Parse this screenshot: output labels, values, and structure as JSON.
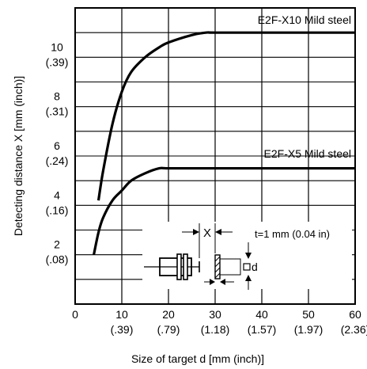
{
  "chart_data": {
    "type": "line",
    "xlabel": "Size of target d [mm (inch)]",
    "ylabel": "Detecting distance X [mm (inch)]",
    "xlim": [
      0,
      60
    ],
    "ylim": [
      0,
      12
    ],
    "grid": true,
    "x_ticks": [
      {
        "value": 0,
        "label": "0",
        "sub": ""
      },
      {
        "value": 10,
        "label": "10",
        "sub": "(.39)"
      },
      {
        "value": 20,
        "label": "20",
        "sub": "(.79)"
      },
      {
        "value": 30,
        "label": "30",
        "sub": "(1.18)"
      },
      {
        "value": 40,
        "label": "40",
        "sub": "(1.57)"
      },
      {
        "value": 50,
        "label": "50",
        "sub": "(1.97)"
      },
      {
        "value": 60,
        "label": "60",
        "sub": "(2.36)"
      }
    ],
    "y_ticks": [
      {
        "value": 2,
        "label": "2",
        "sub": "(.08)"
      },
      {
        "value": 4,
        "label": "4",
        "sub": "(.16)"
      },
      {
        "value": 6,
        "label": "6",
        "sub": "(.24)"
      },
      {
        "value": 8,
        "label": "8",
        "sub": "(.31)"
      },
      {
        "value": 10,
        "label": "10",
        "sub": "(.39)"
      }
    ],
    "series": [
      {
        "name": "E2F-X10 Mild steel",
        "x": [
          5,
          6,
          8,
          10,
          12,
          15,
          18,
          20,
          25,
          28,
          30,
          40,
          50,
          60
        ],
        "y": [
          4.2,
          5.4,
          7.3,
          8.6,
          9.4,
          10.0,
          10.4,
          10.6,
          10.9,
          11.0,
          11.0,
          11.0,
          11.0,
          11.0
        ]
      },
      {
        "name": "E2F-X5 Mild steel",
        "x": [
          4,
          5,
          6,
          8,
          10,
          12,
          15,
          18,
          20,
          30,
          40,
          50,
          60
        ],
        "y": [
          2.0,
          2.9,
          3.5,
          4.2,
          4.6,
          5.0,
          5.3,
          5.5,
          5.5,
          5.5,
          5.5,
          5.5,
          5.5
        ]
      }
    ]
  },
  "diagram": {
    "x_label": "X",
    "d_label": "d",
    "thickness_note": "t=1 mm (0.04 in)"
  }
}
